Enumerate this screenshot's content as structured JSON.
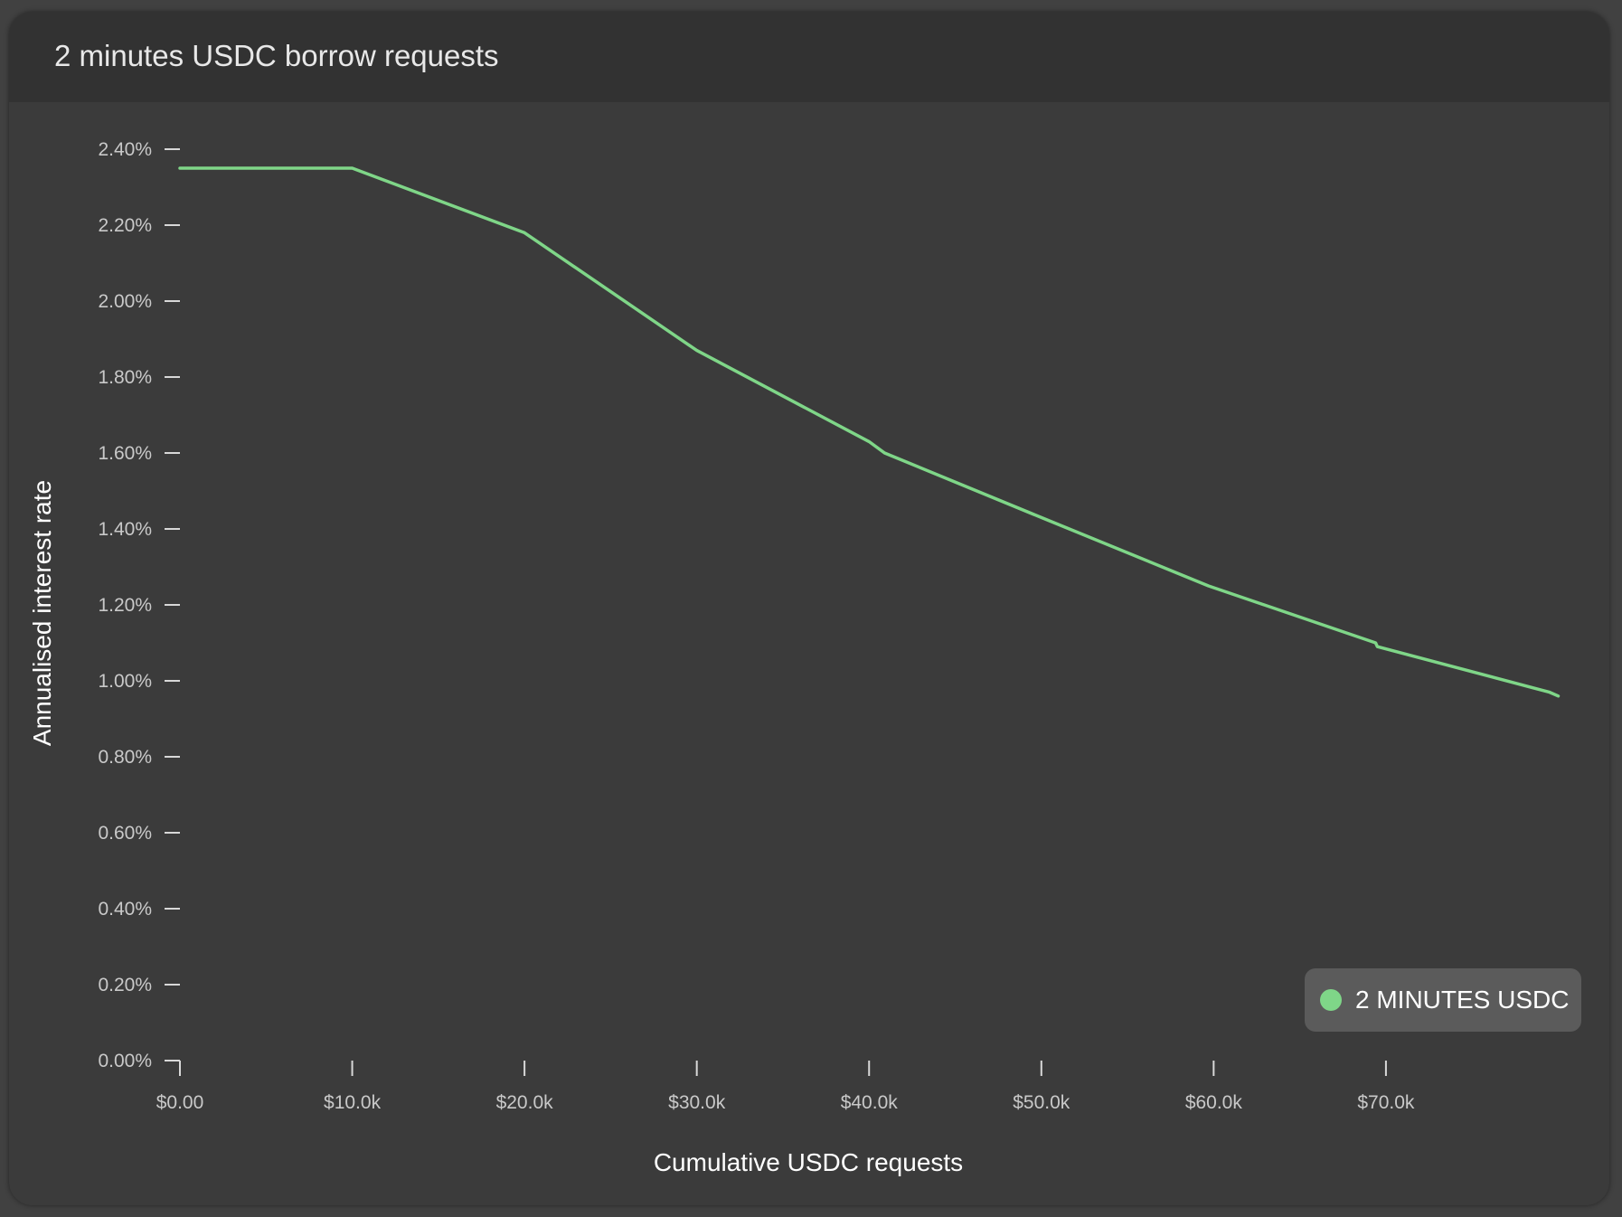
{
  "header": {
    "title": "2 minutes USDC borrow requests"
  },
  "legend": {
    "label": "2 MINUTES USDC"
  },
  "colors": {
    "series": "#7fd688",
    "tick_mark": "#d8d8d8",
    "tick_label": "#c9c9c9"
  },
  "chart_data": {
    "type": "line",
    "title": "2 minutes USDC borrow requests",
    "xlabel": "Cumulative USDC requests",
    "ylabel": "Annualised interest rate",
    "xlim": [
      0,
      80500
    ],
    "ylim": [
      0,
      2.4
    ],
    "x_ticks": [
      0,
      10000,
      20000,
      30000,
      40000,
      50000,
      60000,
      70000
    ],
    "x_tick_labels": [
      "$0.00",
      "$10.0k",
      "$20.0k",
      "$30.0k",
      "$40.0k",
      "$50.0k",
      "$60.0k",
      "$70.0k"
    ],
    "y_ticks": [
      0,
      0.2,
      0.4,
      0.6,
      0.8,
      1.0,
      1.2,
      1.4,
      1.6,
      1.8,
      2.0,
      2.2,
      2.4
    ],
    "y_tick_labels": [
      "0.00%",
      "0.20%",
      "0.40%",
      "0.60%",
      "0.80%",
      "1.00%",
      "1.20%",
      "1.40%",
      "1.60%",
      "1.80%",
      "2.00%",
      "2.20%",
      "2.40%"
    ],
    "grid": false,
    "legend_position": "bottom-right",
    "series": [
      {
        "name": "2 MINUTES USDC",
        "x": [
          0,
          10000,
          20000,
          30000,
          40000,
          40900,
          50000,
          59700,
          69400,
          69500,
          79500,
          80000
        ],
        "y": [
          2.35,
          2.35,
          2.18,
          1.87,
          1.63,
          1.6,
          1.43,
          1.25,
          1.1,
          1.09,
          0.97,
          0.96
        ]
      }
    ]
  }
}
